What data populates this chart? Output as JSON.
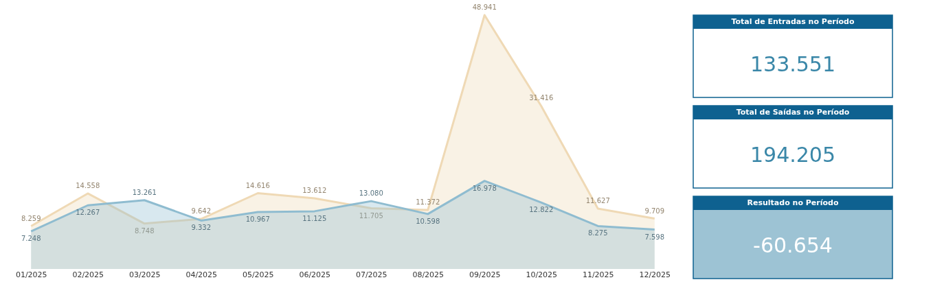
{
  "chart_data": [
    {
      "type": "area",
      "categories": [
        "01/2025",
        "02/2025",
        "03/2025",
        "04/2025",
        "05/2025",
        "06/2025",
        "07/2025",
        "08/2025",
        "09/2025",
        "10/2025",
        "11/2025",
        "12/2025"
      ],
      "series": [
        {
          "color": "#efd9b5",
          "values": [
            8259,
            14558,
            8748,
            9642,
            14616,
            13612,
            11705,
            11372,
            48941,
            31416,
            11627,
            9709
          ],
          "value_labels": [
            "8.259",
            "14.558",
            "8.748",
            "9.642",
            "14.616",
            "13.612",
            "11.705",
            "11.372",
            "48.941",
            "31.416",
            "11.627",
            "9.709"
          ]
        },
        {
          "color": "#8fbcd0",
          "values": [
            7248,
            12267,
            13261,
            9332,
            10967,
            11125,
            13080,
            10598,
            16978,
            12822,
            8275,
            7598
          ],
          "value_labels": [
            "7.248",
            "12.267",
            "13.261",
            "9.332",
            "10.967",
            "11.125",
            "13.080",
            "10.598",
            "16.978",
            "12.822",
            "8.275",
            "7.598"
          ]
        }
      ],
      "grid": false
    },
    {
      "type": "other",
      "title": "Total de Entradas no Período",
      "annotations": [
        "133.551"
      ],
      "colors": [
        "#0e6190",
        "#ffffff"
      ]
    },
    {
      "type": "other",
      "title": "Total de Saídas no Período",
      "annotations": [
        "194.205"
      ],
      "colors": [
        "#0e6190",
        "#ffffff"
      ]
    },
    {
      "type": "other",
      "title": "Resultado no Período",
      "annotations": [
        "-60.654"
      ],
      "colors": [
        "#0e6190",
        "#9dc3d4"
      ]
    }
  ]
}
